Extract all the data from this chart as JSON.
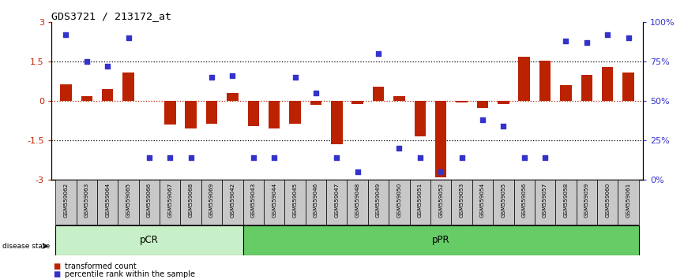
{
  "title": "GDS3721 / 213172_at",
  "samples": [
    "GSM559062",
    "GSM559063",
    "GSM559064",
    "GSM559065",
    "GSM559066",
    "GSM559067",
    "GSM559068",
    "GSM559069",
    "GSM559042",
    "GSM559043",
    "GSM559044",
    "GSM559045",
    "GSM559046",
    "GSM559047",
    "GSM559048",
    "GSM559049",
    "GSM559050",
    "GSM559051",
    "GSM559052",
    "GSM559053",
    "GSM559054",
    "GSM559055",
    "GSM559056",
    "GSM559057",
    "GSM559058",
    "GSM559059",
    "GSM559060",
    "GSM559061"
  ],
  "transformed_count": [
    0.65,
    0.2,
    0.45,
    1.1,
    0.0,
    -0.9,
    -1.05,
    -0.85,
    0.3,
    -0.95,
    -1.05,
    -0.85,
    -0.15,
    -1.65,
    -0.1,
    0.55,
    0.2,
    -1.35,
    -2.9,
    -0.05,
    -0.25,
    -0.1,
    1.7,
    1.55,
    0.6,
    1.0,
    1.3,
    1.1
  ],
  "percentile_rank": [
    92,
    75,
    72,
    90,
    14,
    14,
    14,
    65,
    66,
    14,
    14,
    65,
    55,
    14,
    5,
    80,
    20,
    14,
    5,
    14,
    38,
    34,
    14,
    14,
    88,
    87,
    92,
    90
  ],
  "pCR_count": 9,
  "pPR_count": 19,
  "bar_color": "#bb2200",
  "dot_color": "#3333cc",
  "background_color": "#ffffff",
  "dotted_line_color": "#000000",
  "zero_line_color": "#bb2200",
  "ylim": [
    -3,
    3
  ],
  "ylim_right": [
    0,
    100
  ],
  "pCR_color": "#c8f0c8",
  "pPR_color": "#66cc66",
  "label_bg_color": "#c8c8c8",
  "legend_dot_label": "percentile rank within the sample",
  "legend_bar_label": "transformed count",
  "yticks_left": [
    -3,
    -1.5,
    0,
    1.5,
    3
  ],
  "ytick_labels_left": [
    "-3",
    "-1.5",
    "0",
    "1.5",
    "3"
  ],
  "yticks_right": [
    0,
    25,
    50,
    75,
    100
  ],
  "ytick_labels_right": [
    "0%",
    "25%",
    "50%",
    "75%",
    "100%"
  ]
}
